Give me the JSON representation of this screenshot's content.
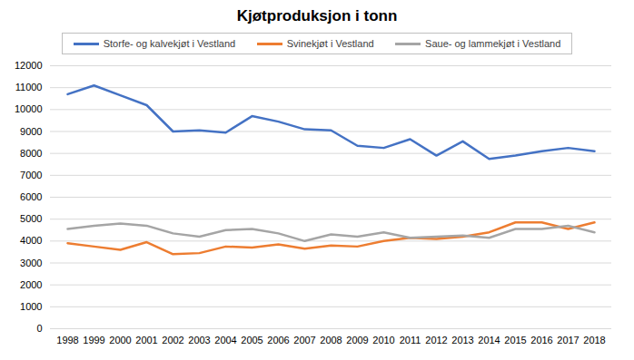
{
  "chart_data": {
    "type": "line",
    "title": "Kjøtproduksjon i tonn",
    "categories": [
      "1998",
      "1999",
      "2000",
      "2001",
      "2002",
      "2003",
      "2004",
      "2005",
      "2006",
      "2007",
      "2008",
      "2009",
      "2010",
      "2011",
      "2012",
      "2013",
      "2014",
      "2015",
      "2016",
      "2017",
      "2018"
    ],
    "series": [
      {
        "name": "Storfe- og kalvekjøt i Vestland",
        "color": "#4472c4",
        "values": [
          10700,
          11100,
          10650,
          10200,
          9000,
          9050,
          8950,
          9700,
          9450,
          9100,
          9050,
          8350,
          8250,
          8650,
          7900,
          8550,
          7750,
          7900,
          8100,
          8250,
          8100
        ]
      },
      {
        "name": "Svinekjøt i Vestland",
        "color": "#ed7d31",
        "values": [
          3900,
          3750,
          3600,
          3950,
          3400,
          3450,
          3750,
          3700,
          3850,
          3650,
          3800,
          3750,
          4000,
          4150,
          4100,
          4200,
          4400,
          4850,
          4850,
          4550,
          4850
        ]
      },
      {
        "name": "Saue- og lammekjøt i Vestland",
        "color": "#a5a5a5",
        "values": [
          4550,
          4700,
          4800,
          4700,
          4350,
          4200,
          4500,
          4550,
          4350,
          4000,
          4300,
          4200,
          4400,
          4150,
          4200,
          4250,
          4150,
          4550,
          4550,
          4700,
          4400
        ]
      }
    ],
    "ylim": [
      0,
      12000
    ],
    "yticks": [
      0,
      1000,
      2000,
      3000,
      4000,
      5000,
      6000,
      7000,
      8000,
      9000,
      10000,
      11000,
      12000
    ],
    "grid": true,
    "legend": "top"
  }
}
